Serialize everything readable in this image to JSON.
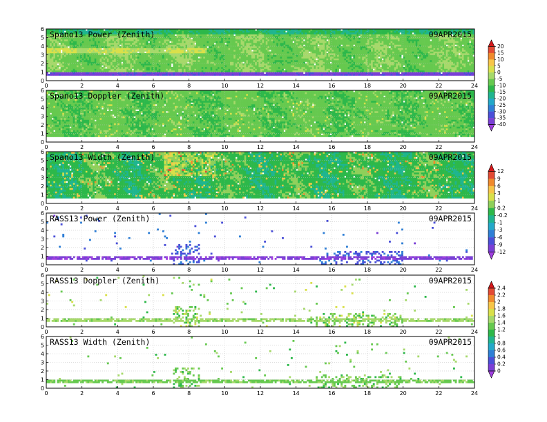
{
  "chart_data": {
    "type": "heatmap",
    "x_range": [
      0,
      24
    ],
    "x_ticks": [
      0,
      2,
      4,
      6,
      8,
      10,
      12,
      14,
      16,
      18,
      20,
      22,
      24
    ],
    "y_range": [
      0,
      6
    ],
    "y_ticks": [
      0,
      1,
      2,
      3,
      4,
      5,
      6
    ],
    "grid": true,
    "panels": [
      {
        "id": "spano-power",
        "title": "Spano13 Power (Zenith)",
        "date": "09APR2015",
        "colorbar": 0,
        "kind": "spano-power"
      },
      {
        "id": "spano-doppler",
        "title": "Spano13 Doppler (Zenith)",
        "date": "09APR2015",
        "colorbar": 0,
        "kind": "spano-doppler"
      },
      {
        "id": "spano-width",
        "title": "Spano13 Width (Zenith)",
        "date": "09APR2015",
        "colorbar": 1,
        "kind": "spano-width"
      },
      {
        "id": "rass-power",
        "title": "RASS13 Power (Zenith)",
        "date": "09APR2015",
        "colorbar": 1,
        "kind": "rass-power"
      },
      {
        "id": "rass-doppler",
        "title": "RASS13 Doppler (Zenith)",
        "date": "09APR2015",
        "colorbar": 2,
        "kind": "rass-doppler"
      },
      {
        "id": "rass-width",
        "title": "RASS13 Width (Zenith)",
        "date": "09APR2015",
        "colorbar": 2,
        "kind": "rass-width"
      }
    ],
    "colorbars": [
      {
        "labels": [
          "20",
          "15",
          "10",
          "5",
          "0",
          "-5",
          "-10",
          "-15",
          "-20",
          "-25",
          "-30",
          "-35",
          "-40"
        ],
        "colors": [
          "#d7191c",
          "#e34a33",
          "#f08a2c",
          "#f7c548",
          "#d9e04a",
          "#a6d96a",
          "#66c94f",
          "#2db84a",
          "#1fb58f",
          "#23a8c9",
          "#2f7fd6",
          "#4a4fd8",
          "#7a3fd6",
          "#a040e0"
        ]
      },
      {
        "labels": [
          "12",
          "9",
          "6",
          "3",
          "1",
          "0.2",
          "-0.2",
          "-1",
          "-3",
          "-6",
          "-9",
          "-12"
        ],
        "colors": [
          "#d7191c",
          "#e34a33",
          "#f08a2c",
          "#f7c548",
          "#d9e04a",
          "#8fd05a",
          "#2db84a",
          "#1fb58f",
          "#23a8c9",
          "#2f7fd6",
          "#4a4fd8",
          "#7a3fd6",
          "#a040e0"
        ]
      },
      {
        "labels": [
          "2.4",
          "2.2",
          "2",
          "1.8",
          "1.6",
          "1.4",
          "1.2",
          "1",
          "0.8",
          "0.6",
          "0.4",
          "0.2",
          "0"
        ],
        "colors": [
          "#d7191c",
          "#e34a33",
          "#f08a2c",
          "#f7c548",
          "#d9e04a",
          "#a6d96a",
          "#66c94f",
          "#2db84a",
          "#1fb58f",
          "#23a8c9",
          "#2f7fd6",
          "#4a4fd8",
          "#7a3fd6",
          "#a040e0"
        ]
      }
    ]
  }
}
